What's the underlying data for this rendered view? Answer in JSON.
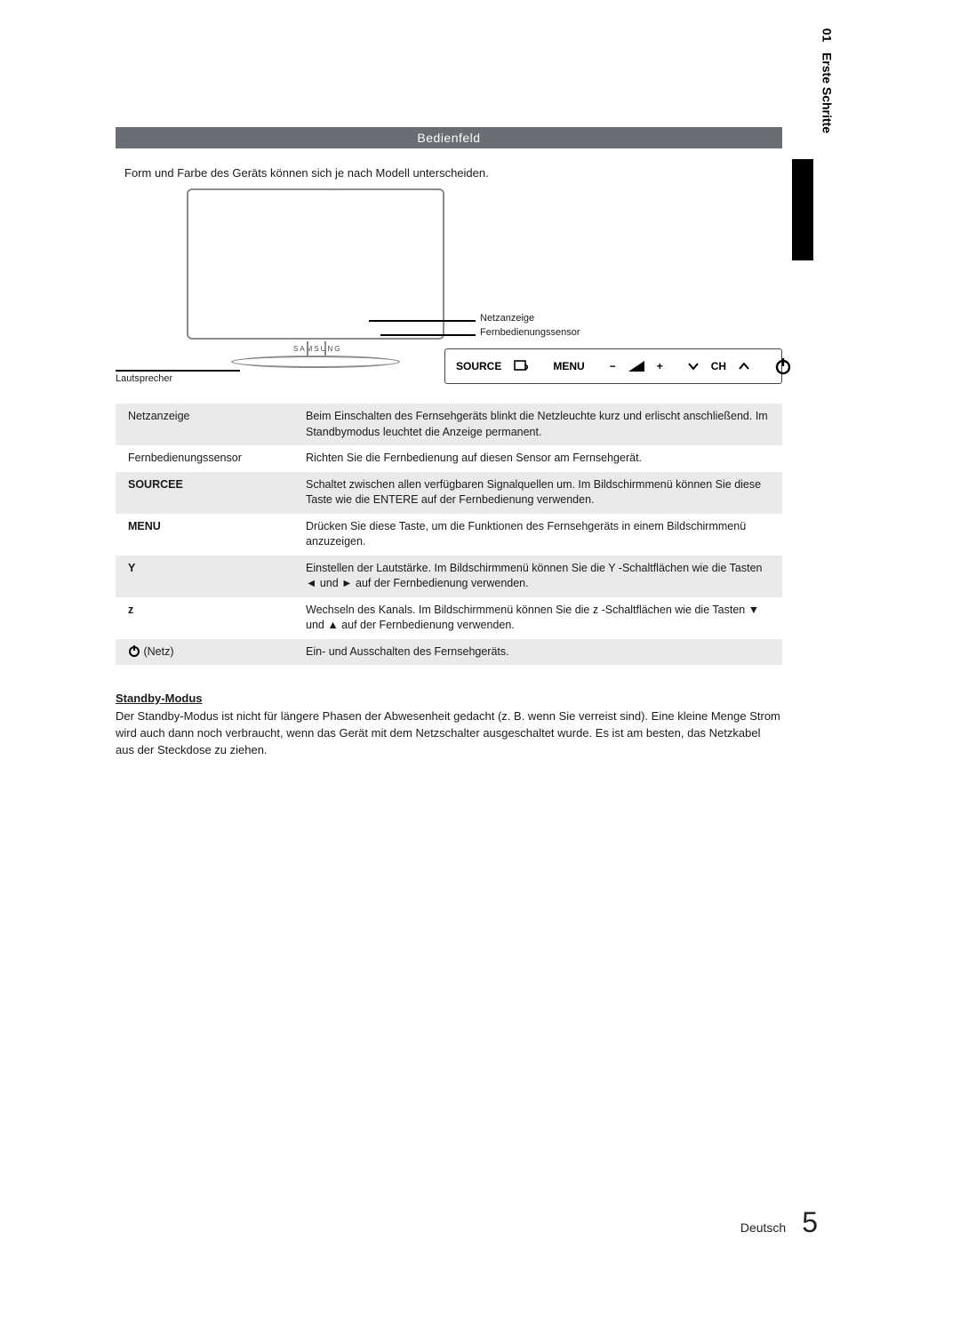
{
  "sideTab": {
    "chapter": "01",
    "title": "Erste Schritte"
  },
  "header": {
    "title": "Bedienfeld"
  },
  "intro": "Form und Farbe des Geräts können sich je nach Modell unterscheiden.",
  "diagram": {
    "brand": "SAMSUNG",
    "speakerLabel": "Lautsprecher",
    "indicator1": "Netzanzeige",
    "indicator2": "Fernbedienungssensor",
    "panel": {
      "source": "SOURCE",
      "menu": "MENU",
      "volMinus": "−",
      "volPlus": "+",
      "ch": "CH"
    }
  },
  "rows": [
    {
      "key": "Netzanzeige",
      "keyBold": false,
      "shaded": true,
      "desc": "Beim Einschalten des Fernsehgeräts blinkt die Netzleuchte kurz und erlischt anschließend. Im Standbymodus leuchtet die Anzeige permanent."
    },
    {
      "key": "Fernbedienungssensor",
      "keyBold": false,
      "shaded": false,
      "desc": "Richten Sie die Fernbedienung auf diesen Sensor am Fernsehgerät."
    },
    {
      "key": "SOURCEE",
      "keyBold": true,
      "shaded": true,
      "desc": "Schaltet zwischen allen verfügbaren Signalquellen um. Im Bildschirmmenü können Sie diese Taste wie die ENTERE auf der Fernbedienung verwenden."
    },
    {
      "key": "MENU",
      "keyBold": true,
      "shaded": false,
      "desc": "Drücken Sie diese Taste, um die Funktionen des Fernsehgeräts in einem Bildschirmmenü anzuzeigen."
    },
    {
      "key": "Y",
      "keyBold": true,
      "shaded": true,
      "desc": "Einstellen der Lautstärke. Im Bildschirmmenü können Sie die Y         -Schaltflächen wie die Tasten ◄ und ► auf der Fernbedienung verwenden."
    },
    {
      "key": "z",
      "keyBold": true,
      "shaded": false,
      "desc": "Wechseln des Kanals. Im Bildschirmmenü können Sie die z         -Schaltflächen wie die Tasten ▼ und ▲ auf der Fernbedienung verwenden."
    },
    {
      "key": "P (Netz)",
      "keyBold": false,
      "shaded": true,
      "powerIcon": true,
      "desc": "Ein- und Ausschalten des Fernsehgeräts."
    }
  ],
  "standby": {
    "heading": "Standby-Modus",
    "text": "Der Standby-Modus ist nicht für längere Phasen der Abwesenheit gedacht (z. B. wenn Sie verreist sind). Eine kleine Menge Strom wird auch dann noch verbraucht, wenn das Gerät mit dem Netzschalter ausgeschaltet wurde. Es ist am besten, das Netzkabel aus der Steckdose zu ziehen."
  },
  "footer": {
    "lang": "Deutsch",
    "page": "5"
  },
  "colors": {
    "headerBg": "#6a6e74",
    "shadeBg": "#e9eaec",
    "tvBorder": "#8a8a8a"
  }
}
